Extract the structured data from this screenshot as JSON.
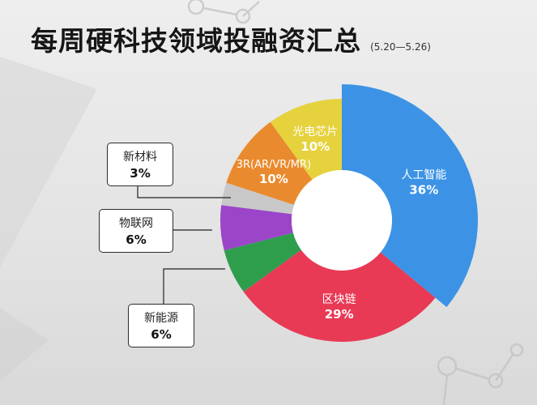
{
  "title": "每周硬科技领域投融资汇总",
  "subtitle": "(5.20—5.26)",
  "colors": {
    "ai": "#3c93e6",
    "blockchain": "#e83a55",
    "new_energy": "#2e9e4d",
    "iot": "#9b45c9",
    "new_material": "#c8c8c8",
    "3r": "#ea8a2e",
    "optoelectronic_chip": "#e6d23d"
  },
  "chart_data": {
    "type": "pie",
    "variant": "donut",
    "title": "每周硬科技领域投融资汇总",
    "subtitle": "(5.20—5.26)",
    "slices": [
      {
        "label": "人工智能",
        "value": 36,
        "display": "36%"
      },
      {
        "label": "区块链",
        "value": 29,
        "display": "29%"
      },
      {
        "label": "新能源",
        "value": 6,
        "display": "6%"
      },
      {
        "label": "物联网",
        "value": 6,
        "display": "6%"
      },
      {
        "label": "新材料",
        "value": 3,
        "display": "3%"
      },
      {
        "label": "3R(AR/VR/MR)",
        "value": 10,
        "display": "10%"
      },
      {
        "label": "光电芯片",
        "value": 10,
        "display": "10%"
      }
    ]
  }
}
